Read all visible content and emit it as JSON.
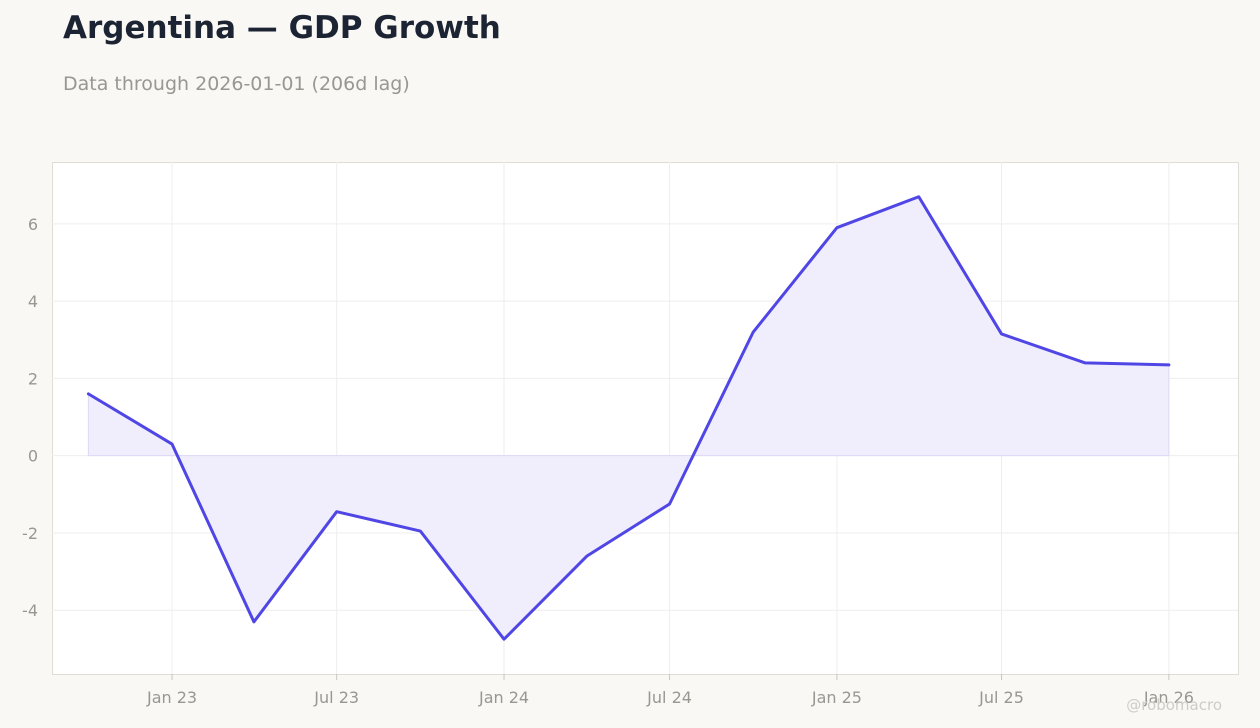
{
  "header": {
    "title": "Argentina — GDP Growth",
    "subtitle": "Data through 2026-01-01 (206d lag)"
  },
  "watermark": "@robomacro",
  "colors": {
    "line": "#4f46e5",
    "fill": "#f0eefc",
    "background": "#f9f8f5",
    "plot_background": "#ffffff",
    "grid": "#eeeeee",
    "text_muted": "#9a9690"
  },
  "chart_data": {
    "type": "area",
    "title": "Argentina — GDP Growth",
    "subtitle": "Data through 2026-01-01 (206d lag)",
    "xlabel": "",
    "ylabel": "",
    "x": [
      "2022-10-01",
      "2023-01-01",
      "2023-04-01",
      "2023-07-01",
      "2023-10-01",
      "2024-01-01",
      "2024-04-01",
      "2024-07-01",
      "2024-10-01",
      "2025-01-01",
      "2025-04-01",
      "2025-07-01",
      "2025-10-01",
      "2026-01-01"
    ],
    "values": [
      1.6,
      0.3,
      -4.3,
      -1.45,
      -1.95,
      -4.75,
      -2.6,
      -1.25,
      3.2,
      5.9,
      6.7,
      3.15,
      2.4,
      2.35
    ],
    "x_ticks": [
      {
        "date": "2023-01-01",
        "label": "Jan 23"
      },
      {
        "date": "2023-07-01",
        "label": "Jul 23"
      },
      {
        "date": "2024-01-01",
        "label": "Jan 24"
      },
      {
        "date": "2024-07-01",
        "label": "Jul 24"
      },
      {
        "date": "2025-01-01",
        "label": "Jan 25"
      },
      {
        "date": "2025-07-01",
        "label": "Jul 25"
      },
      {
        "date": "2026-01-01",
        "label": "Jan 26"
      }
    ],
    "y_ticks": [
      -4,
      -2,
      0,
      2,
      4,
      6
    ],
    "y_tick_labels": [
      "-4",
      "-2",
      "0",
      "2",
      "4",
      "6"
    ],
    "ylim": [
      -5.65,
      7.6
    ],
    "xlim": [
      "2022-08-22",
      "2026-03-18"
    ],
    "grid": true,
    "legend": "none"
  }
}
